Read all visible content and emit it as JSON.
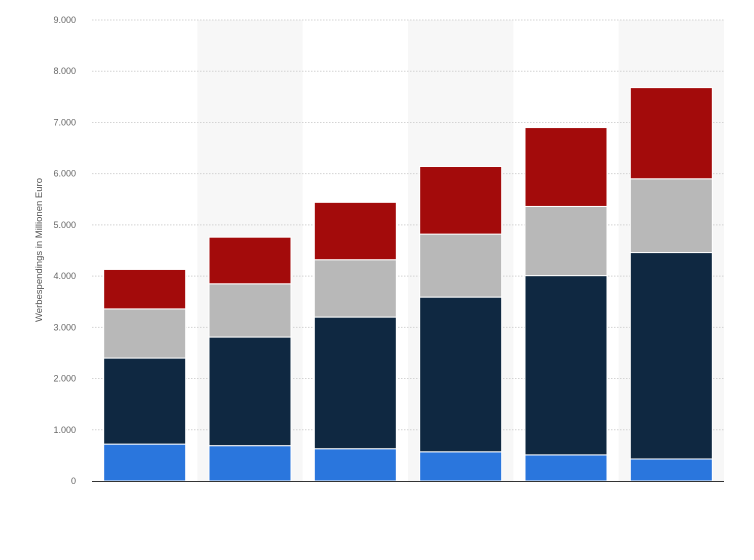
{
  "chart_data": {
    "type": "bar",
    "stacked": true,
    "title": "",
    "xlabel": "",
    "ylabel": "Werbespendings in Millionen Euro",
    "ylim": [
      0,
      9000
    ],
    "yticks": [
      0,
      1000,
      2000,
      3000,
      4000,
      5000,
      6000,
      7000,
      8000,
      9000
    ],
    "ytick_labels": [
      "0",
      "1.000",
      "2.000",
      "3.000",
      "4.000",
      "5.000",
      "6.000",
      "7.000",
      "8.000",
      "9.000"
    ],
    "categories": [
      "",
      "",
      "",
      "",
      "",
      ""
    ],
    "grid": true,
    "legend": "none",
    "series": [
      {
        "color": "#2a76dd",
        "values": [
          720,
          690,
          630,
          570,
          510,
          430
        ]
      },
      {
        "color": "#0f2841",
        "values": [
          1680,
          2120,
          2570,
          3020,
          3500,
          4030
        ]
      },
      {
        "color": "#b8b8b8",
        "values": [
          960,
          1040,
          1120,
          1230,
          1350,
          1440
        ]
      },
      {
        "color": "#a30b0b",
        "values": [
          770,
          910,
          1120,
          1320,
          1540,
          1780
        ]
      }
    ]
  }
}
